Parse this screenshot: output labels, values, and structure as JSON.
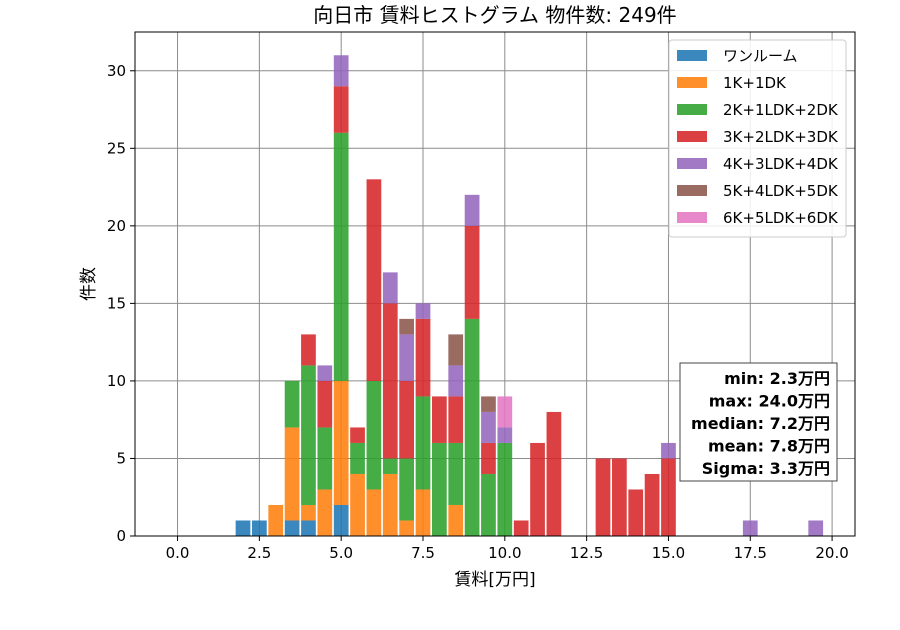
{
  "chart_data": {
    "type": "bar",
    "stacked": true,
    "title": "向日市 賃料ヒストグラム  物件数: 249件",
    "xlabel": "賃料[万円]",
    "ylabel": "件数",
    "xlim": [
      -1.3,
      20.7
    ],
    "ylim": [
      0,
      32.5
    ],
    "xticks": [
      0.0,
      2.5,
      5.0,
      7.5,
      10.0,
      12.5,
      15.0,
      17.5,
      20.0
    ],
    "xtick_labels": [
      "0.0",
      "2.5",
      "5.0",
      "7.5",
      "10.0",
      "12.5",
      "15.0",
      "17.5",
      "20.0"
    ],
    "yticks": [
      0,
      5,
      10,
      15,
      20,
      25,
      30
    ],
    "ytick_labels": [
      "0",
      "5",
      "10",
      "15",
      "20",
      "25",
      "30"
    ],
    "grid": true,
    "legend_position": "top-right",
    "bin_width": 0.5,
    "x": [
      2.0,
      2.5,
      3.0,
      3.5,
      4.0,
      4.5,
      5.0,
      5.5,
      6.0,
      6.5,
      7.0,
      7.5,
      8.0,
      8.5,
      9.0,
      9.5,
      10.0,
      10.5,
      11.0,
      11.5,
      13.0,
      13.5,
      14.0,
      14.5,
      15.0,
      17.5,
      19.5
    ],
    "series": [
      {
        "name": "ワンルーム",
        "color": "#1f77b4",
        "values": [
          1,
          1,
          0,
          1,
          1,
          0,
          2,
          0,
          0,
          0,
          0,
          0,
          0,
          0,
          0,
          0,
          0,
          0,
          0,
          0,
          0,
          0,
          0,
          0,
          0,
          0,
          0
        ]
      },
      {
        "name": "1K+1DK",
        "color": "#ff7f0e",
        "values": [
          0,
          0,
          2,
          6,
          1,
          3,
          8,
          4,
          3,
          4,
          1,
          3,
          0,
          2,
          0,
          0,
          0,
          0,
          0,
          0,
          0,
          0,
          0,
          0,
          0,
          0,
          0
        ]
      },
      {
        "name": "2K+1LDK+2DK",
        "color": "#2ca02c",
        "values": [
          0,
          0,
          0,
          3,
          9,
          4,
          16,
          2,
          7,
          1,
          4,
          6,
          6,
          4,
          14,
          4,
          6,
          0,
          0,
          0,
          0,
          0,
          0,
          0,
          0,
          0,
          0
        ]
      },
      {
        "name": "3K+2LDK+3DK",
        "color": "#d62728",
        "values": [
          0,
          0,
          0,
          0,
          2,
          3,
          3,
          1,
          13,
          10,
          5,
          5,
          3,
          3,
          6,
          2,
          0,
          1,
          6,
          8,
          5,
          5,
          3,
          4,
          5,
          0,
          0
        ]
      },
      {
        "name": "4K+3LDK+4DK",
        "color": "#9467bd",
        "values": [
          0,
          0,
          0,
          0,
          0,
          1,
          2,
          0,
          0,
          2,
          3,
          1,
          0,
          2,
          2,
          2,
          1,
          0,
          0,
          0,
          0,
          0,
          0,
          0,
          1,
          1,
          1
        ]
      },
      {
        "name": "5K+4LDK+5DK",
        "color": "#8c564b",
        "values": [
          0,
          0,
          0,
          0,
          0,
          0,
          0,
          0,
          0,
          0,
          1,
          0,
          0,
          2,
          0,
          1,
          0,
          0,
          0,
          0,
          0,
          0,
          0,
          0,
          0,
          0,
          0
        ]
      },
      {
        "name": "6K+5LDK+6DK",
        "color": "#e377c2",
        "values": [
          0,
          0,
          0,
          0,
          0,
          0,
          0,
          0,
          0,
          0,
          0,
          0,
          0,
          0,
          0,
          0,
          2,
          0,
          0,
          0,
          0,
          0,
          0,
          0,
          0,
          0,
          0
        ]
      }
    ],
    "stats_box": [
      "min: 2.3万円",
      "max: 24.0万円",
      "median: 7.2万円",
      "mean: 7.8万円",
      "Sigma: 3.3万円"
    ]
  }
}
